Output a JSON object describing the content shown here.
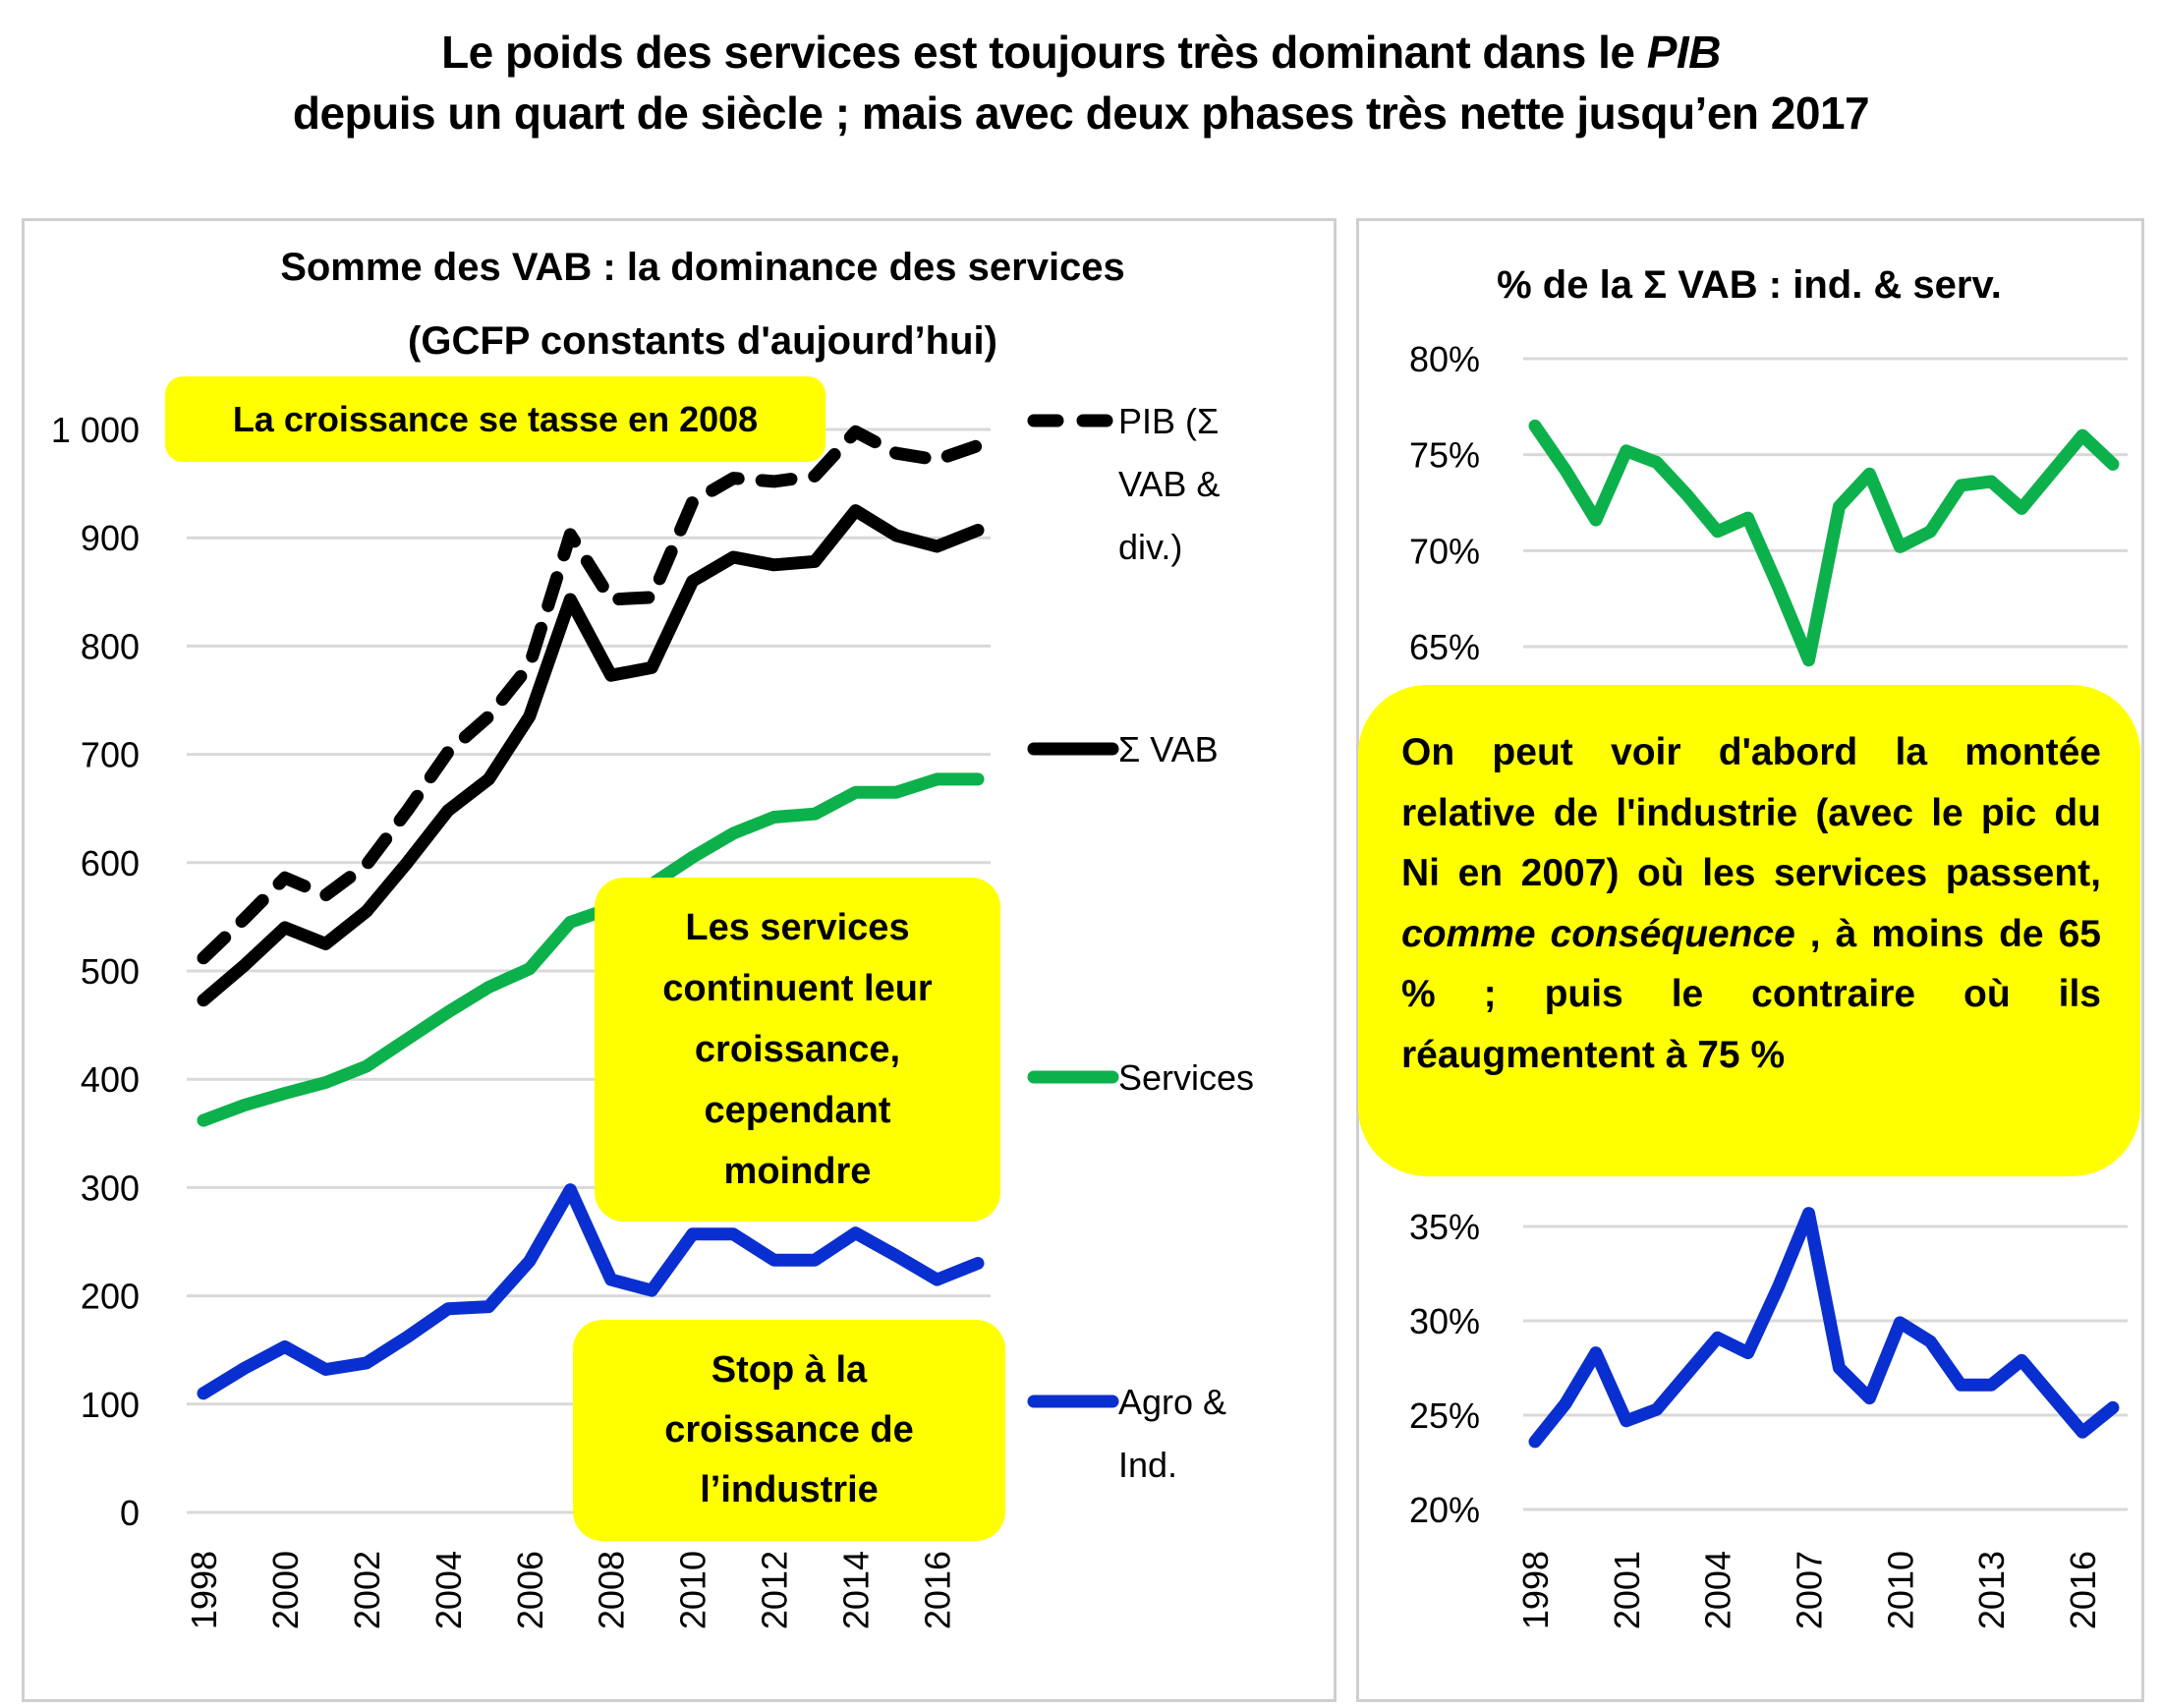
{
  "title": {
    "line1_prefix": "Le poids des services est toujours très dominant dans le ",
    "line1_italic": "PIB",
    "line2": "depuis un quart de siècle ; mais avec deux phases très nette jusqu’en 2017"
  },
  "colors": {
    "pib": "#000000",
    "vab": "#000000",
    "services": "#0db14b",
    "industry": "#0a2fd0",
    "note_bg": "#ffff00",
    "grid": "#d9d9d9"
  },
  "annotations": {
    "growth_2008": "La croissance se tasse  en 2008",
    "services_growth": [
      "Les services",
      "continuent leur",
      "croissance,",
      "cependant",
      "moindre"
    ],
    "industry_stop": [
      "Stop à la",
      "croissance de",
      "l’industrie"
    ],
    "right_note": {
      "part1": "On peut voir d'abord la montée relative de l'industrie  (avec le pic du Ni en 2007) où les services passent, ",
      "italic": "comme conséquence",
      "part2": " , à moins de 65 % ; puis le contraire où  ils réaugmentent à 75 %"
    }
  },
  "chart_data": [
    {
      "type": "line",
      "title": "Somme des VAB : la dominance des services",
      "subtitle": "(GCFP constants d'aujourd’hui)",
      "xlabel": "",
      "ylabel": "",
      "x": [
        1998,
        1999,
        2000,
        2001,
        2002,
        2003,
        2004,
        2005,
        2006,
        2007,
        2008,
        2009,
        2010,
        2011,
        2012,
        2013,
        2014,
        2015,
        2016,
        2017
      ],
      "x_tick_labels": [
        "1998",
        "2000",
        "2002",
        "2004",
        "2006",
        "2008",
        "2010",
        "2012",
        "2014",
        "2016"
      ],
      "ylim": [
        0,
        1000
      ],
      "y_ticks": [
        0,
        100,
        200,
        300,
        400,
        500,
        600,
        700,
        800,
        900,
        1000
      ],
      "y_tick_labels": [
        "0",
        "100",
        "200",
        "300",
        "400",
        "500",
        "600",
        "700",
        "800",
        "900",
        "1 000"
      ],
      "grid": true,
      "legend_position": "right",
      "series": [
        {
          "name": "PIB (Σ VAB & div.)",
          "legend_lines": [
            "PIB (Σ",
            "VAB &",
            "div.)"
          ],
          "style": "dashed",
          "color": "#000000",
          "values": [
            512,
            548,
            586,
            570,
            598,
            648,
            702,
            735,
            782,
            903,
            843,
            845,
            933,
            955,
            952,
            957,
            998,
            978,
            972,
            985
          ]
        },
        {
          "name": "Σ VAB",
          "legend_lines": [
            "Σ VAB"
          ],
          "style": "solid",
          "color": "#000000",
          "values": [
            473,
            505,
            540,
            525,
            555,
            600,
            648,
            677,
            735,
            843,
            773,
            780,
            860,
            882,
            875,
            878,
            925,
            902,
            892,
            907
          ]
        },
        {
          "name": "Services",
          "legend_lines": [
            "Services"
          ],
          "style": "solid",
          "color": "#0db14b",
          "values": [
            362,
            376,
            387,
            397,
            412,
            437,
            462,
            485,
            502,
            545,
            558,
            580,
            605,
            627,
            642,
            645,
            665,
            665,
            677,
            677
          ]
        },
        {
          "name": "Agro & Ind.",
          "legend_lines": [
            "Agro &",
            "Ind."
          ],
          "style": "solid",
          "color": "#0a2fd0",
          "values": [
            110,
            133,
            153,
            132,
            138,
            162,
            188,
            190,
            232,
            298,
            215,
            205,
            257,
            257,
            233,
            233,
            258,
            237,
            215,
            230
          ]
        }
      ]
    },
    {
      "type": "line",
      "title": "% de la Σ VAB : ind. & serv.",
      "xlabel": "",
      "ylabel": "",
      "x": [
        1998,
        1999,
        2000,
        2001,
        2002,
        2003,
        2004,
        2005,
        2006,
        2007,
        2008,
        2009,
        2010,
        2011,
        2012,
        2013,
        2014,
        2015,
        2016,
        2017
      ],
      "x_tick_labels": [
        "1998",
        "2001",
        "2004",
        "2007",
        "2010",
        "2013",
        "2016"
      ],
      "grid": true,
      "panels": [
        {
          "name": "Services share",
          "ylim": [
            65,
            80
          ],
          "y_ticks": [
            65,
            70,
            75,
            80
          ],
          "y_tick_labels": [
            "65%",
            "70%",
            "75%",
            "80%"
          ],
          "color": "#0db14b",
          "values": [
            76.5,
            74.2,
            71.6,
            75.2,
            74.6,
            72.9,
            71.0,
            71.7,
            68.1,
            64.3,
            72.3,
            74.0,
            70.2,
            71.0,
            73.4,
            73.6,
            72.2,
            74.1,
            76.0,
            74.5
          ]
        },
        {
          "name": "Industry share",
          "ylim": [
            20,
            35
          ],
          "y_ticks": [
            20,
            25,
            30,
            35
          ],
          "y_tick_labels": [
            "20%",
            "25%",
            "30%",
            "35%"
          ],
          "color": "#0a2fd0",
          "values": [
            23.6,
            25.6,
            28.3,
            24.7,
            25.3,
            27.2,
            29.1,
            28.3,
            31.8,
            35.7,
            27.5,
            25.9,
            29.9,
            28.9,
            26.6,
            26.6,
            27.9,
            26.0,
            24.1,
            25.4
          ]
        }
      ]
    }
  ]
}
